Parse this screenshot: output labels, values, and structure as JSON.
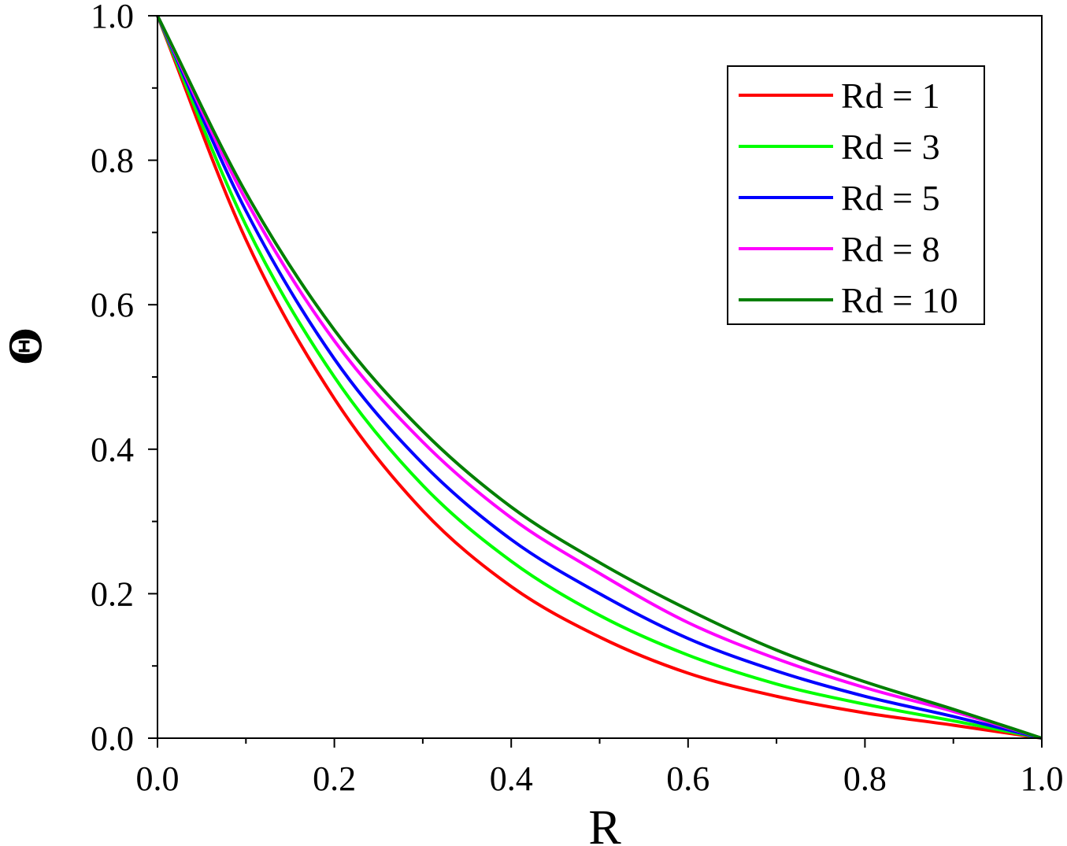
{
  "chart_data": {
    "type": "line",
    "xlabel": "R",
    "ylabel": "Θ",
    "xlim": [
      0.0,
      1.0
    ],
    "ylim": [
      0.0,
      1.0
    ],
    "x_ticks": [
      "0.0",
      "0.2",
      "0.4",
      "0.6",
      "0.8",
      "1.0"
    ],
    "y_ticks": [
      "0.0",
      "0.2",
      "0.4",
      "0.6",
      "0.8",
      "1.0"
    ],
    "grid": false,
    "legend_position": "top-right",
    "x": [
      0.0,
      0.1,
      0.2,
      0.3,
      0.4,
      0.5,
      0.6,
      0.7,
      0.8,
      0.9,
      1.0
    ],
    "series": [
      {
        "name": "Rd = 1",
        "color": "#ff0000",
        "values": [
          1.0,
          0.69,
          0.47,
          0.315,
          0.21,
          0.14,
          0.09,
          0.058,
          0.035,
          0.018,
          0.0
        ]
      },
      {
        "name": "Rd = 3",
        "color": "#00ff00",
        "values": [
          1.0,
          0.71,
          0.5,
          0.35,
          0.245,
          0.17,
          0.115,
          0.075,
          0.047,
          0.024,
          0.0
        ]
      },
      {
        "name": "Rd = 5",
        "color": "#0000ff",
        "values": [
          1.0,
          0.73,
          0.525,
          0.38,
          0.275,
          0.2,
          0.138,
          0.093,
          0.058,
          0.03,
          0.0
        ]
      },
      {
        "name": "Rd = 8",
        "color": "#ff00ff",
        "values": [
          1.0,
          0.745,
          0.55,
          0.41,
          0.305,
          0.228,
          0.16,
          0.11,
          0.07,
          0.037,
          0.0
        ]
      },
      {
        "name": "Rd = 10",
        "color": "#007f00",
        "values": [
          1.0,
          0.755,
          0.565,
          0.425,
          0.32,
          0.243,
          0.178,
          0.122,
          0.078,
          0.04,
          0.0
        ]
      }
    ]
  }
}
